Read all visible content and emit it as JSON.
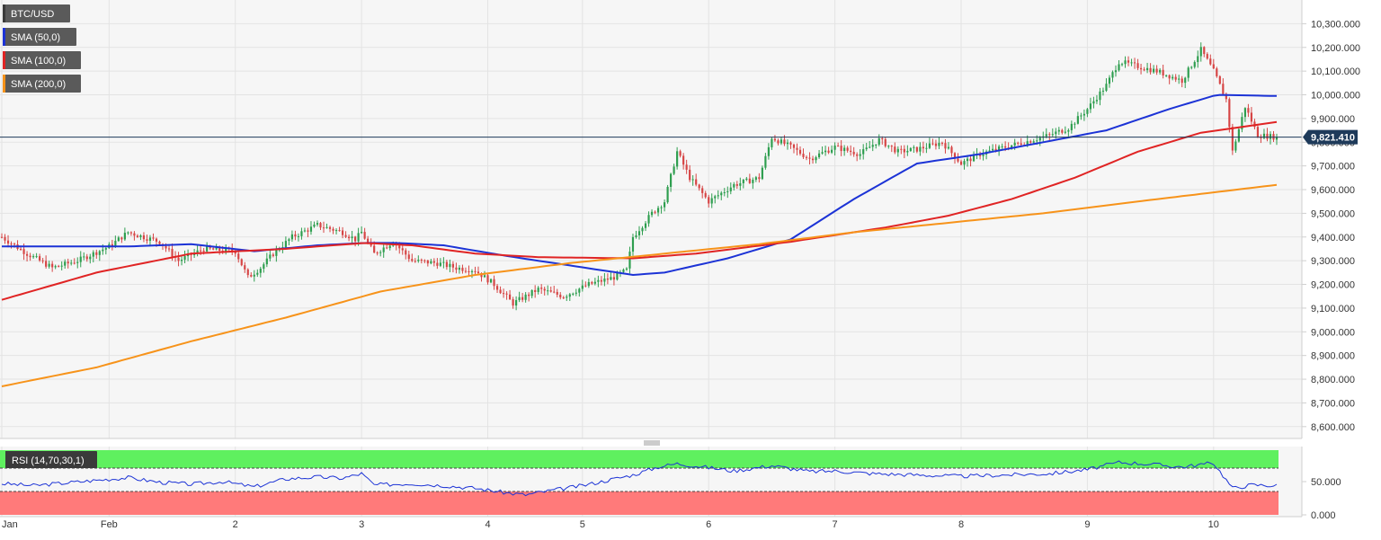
{
  "chart_data": [
    {
      "type": "candlestick",
      "symbol_label": "BTC/USD",
      "last_price_label": "9,821.410",
      "last_price": 9821.41,
      "ylim": [
        8550,
        10400
      ],
      "y_ticks": [
        8600,
        8700,
        8800,
        8900,
        9000,
        9100,
        9200,
        9300,
        9400,
        9500,
        9600,
        9700,
        9800,
        9900,
        10000,
        10100,
        10200,
        10300
      ],
      "y_tick_labels": [
        "8,600.000",
        "8,700.000",
        "8,800.000",
        "8,900.000",
        "9,000.000",
        "9,100.000",
        "9,200.000",
        "9,300.000",
        "9,400.000",
        "9,500.000",
        "9,600.000",
        "9,700.000",
        "9,800.000",
        "9,900.000",
        "10,000.000",
        "10,100.000",
        "10,200.000",
        "10,300.000"
      ],
      "x_labels": [
        "Jan",
        "Feb",
        "2",
        "3",
        "4",
        "5",
        "6",
        "7",
        "8",
        "9",
        "10"
      ],
      "x_label_index": [
        0,
        34,
        74,
        114,
        154,
        184,
        224,
        264,
        304,
        344,
        384
      ],
      "candles_count": 405,
      "key_closes": [
        [
          0,
          9400
        ],
        [
          8,
          9330
        ],
        [
          16,
          9270
        ],
        [
          24,
          9300
        ],
        [
          34,
          9360
        ],
        [
          40,
          9420
        ],
        [
          50,
          9380
        ],
        [
          56,
          9300
        ],
        [
          64,
          9350
        ],
        [
          74,
          9340
        ],
        [
          78,
          9230
        ],
        [
          82,
          9270
        ],
        [
          86,
          9330
        ],
        [
          92,
          9400
        ],
        [
          100,
          9450
        ],
        [
          108,
          9420
        ],
        [
          112,
          9390
        ],
        [
          114,
          9420
        ],
        [
          118,
          9330
        ],
        [
          124,
          9380
        ],
        [
          130,
          9300
        ],
        [
          138,
          9290
        ],
        [
          144,
          9270
        ],
        [
          150,
          9260
        ],
        [
          156,
          9200
        ],
        [
          162,
          9120
        ],
        [
          170,
          9180
        ],
        [
          178,
          9150
        ],
        [
          186,
          9200
        ],
        [
          194,
          9230
        ],
        [
          198,
          9260
        ],
        [
          200,
          9400
        ],
        [
          206,
          9500
        ],
        [
          210,
          9550
        ],
        [
          214,
          9760
        ],
        [
          218,
          9650
        ],
        [
          224,
          9550
        ],
        [
          232,
          9620
        ],
        [
          240,
          9650
        ],
        [
          244,
          9820
        ],
        [
          250,
          9780
        ],
        [
          256,
          9730
        ],
        [
          264,
          9780
        ],
        [
          272,
          9750
        ],
        [
          278,
          9810
        ],
        [
          284,
          9760
        ],
        [
          290,
          9770
        ],
        [
          298,
          9800
        ],
        [
          304,
          9710
        ],
        [
          310,
          9750
        ],
        [
          318,
          9780
        ],
        [
          324,
          9800
        ],
        [
          332,
          9830
        ],
        [
          338,
          9860
        ],
        [
          344,
          9940
        ],
        [
          350,
          10040
        ],
        [
          354,
          10140
        ],
        [
          360,
          10120
        ],
        [
          366,
          10100
        ],
        [
          374,
          10060
        ],
        [
          380,
          10190
        ],
        [
          384,
          10100
        ],
        [
          388,
          9980
        ],
        [
          390,
          9760
        ],
        [
          394,
          9950
        ],
        [
          398,
          9830
        ],
        [
          404,
          9821.41
        ]
      ],
      "series": [
        {
          "name": "SMA (50,0)",
          "color": "#1c33d6",
          "points": [
            [
              0,
              9360
            ],
            [
              40,
              9360
            ],
            [
              60,
              9370
            ],
            [
              80,
              9340
            ],
            [
              100,
              9365
            ],
            [
              115,
              9375
            ],
            [
              125,
              9375
            ],
            [
              140,
              9365
            ],
            [
              160,
              9320
            ],
            [
              180,
              9280
            ],
            [
              200,
              9240
            ],
            [
              210,
              9250
            ],
            [
              230,
              9310
            ],
            [
              250,
              9390
            ],
            [
              270,
              9560
            ],
            [
              290,
              9710
            ],
            [
              310,
              9750
            ],
            [
              330,
              9800
            ],
            [
              350,
              9850
            ],
            [
              370,
              9940
            ],
            [
              385,
              10000
            ],
            [
              404,
              9995
            ]
          ]
        },
        {
          "name": "SMA (100,0)",
          "color": "#e02424",
          "points": [
            [
              0,
              9135
            ],
            [
              30,
              9250
            ],
            [
              60,
              9330
            ],
            [
              90,
              9350
            ],
            [
              115,
              9375
            ],
            [
              130,
              9365
            ],
            [
              150,
              9330
            ],
            [
              170,
              9315
            ],
            [
              200,
              9310
            ],
            [
              220,
              9330
            ],
            [
              250,
              9380
            ],
            [
              280,
              9440
            ],
            [
              300,
              9490
            ],
            [
              320,
              9560
            ],
            [
              340,
              9650
            ],
            [
              360,
              9760
            ],
            [
              380,
              9840
            ],
            [
              404,
              9885
            ]
          ]
        },
        {
          "name": "SMA (200,0)",
          "color": "#f7931a",
          "points": [
            [
              0,
              8770
            ],
            [
              30,
              8850
            ],
            [
              60,
              8960
            ],
            [
              90,
              9060
            ],
            [
              120,
              9170
            ],
            [
              150,
              9240
            ],
            [
              180,
              9290
            ],
            [
              210,
              9330
            ],
            [
              240,
              9370
            ],
            [
              270,
              9420
            ],
            [
              300,
              9460
            ],
            [
              330,
              9500
            ],
            [
              360,
              9550
            ],
            [
              404,
              9620
            ]
          ]
        }
      ],
      "grid": true
    },
    {
      "type": "line",
      "label": "RSI (14,70,30,1)",
      "ylim": [
        0,
        100
      ],
      "overbought": 70,
      "oversold": 30,
      "y_ticks": [
        0,
        50
      ],
      "y_tick_labels": [
        "0.000",
        "50.000"
      ],
      "color": "#1c33d6",
      "overbought_zone_color": "#5ff05f",
      "oversold_zone_color": "#ff7a7a",
      "key_values": [
        [
          0,
          47
        ],
        [
          10,
          44
        ],
        [
          20,
          48
        ],
        [
          30,
          52
        ],
        [
          40,
          56
        ],
        [
          50,
          49
        ],
        [
          60,
          46
        ],
        [
          70,
          50
        ],
        [
          80,
          42
        ],
        [
          90,
          54
        ],
        [
          100,
          57
        ],
        [
          108,
          55
        ],
        [
          114,
          62
        ],
        [
          118,
          45
        ],
        [
          130,
          47
        ],
        [
          140,
          44
        ],
        [
          150,
          40
        ],
        [
          160,
          33
        ],
        [
          166,
          30
        ],
        [
          172,
          35
        ],
        [
          184,
          44
        ],
        [
          200,
          60
        ],
        [
          208,
          72
        ],
        [
          214,
          77
        ],
        [
          224,
          71
        ],
        [
          232,
          66
        ],
        [
          244,
          74
        ],
        [
          256,
          65
        ],
        [
          264,
          66
        ],
        [
          276,
          62
        ],
        [
          290,
          60
        ],
        [
          304,
          58
        ],
        [
          318,
          60
        ],
        [
          332,
          62
        ],
        [
          344,
          68
        ],
        [
          354,
          79
        ],
        [
          362,
          77
        ],
        [
          374,
          72
        ],
        [
          384,
          78
        ],
        [
          390,
          40
        ],
        [
          396,
          45
        ],
        [
          404,
          44
        ]
      ]
    }
  ],
  "indicator_labels": [
    "BTC/USD",
    "SMA (50,0)",
    "SMA (100,0)",
    "SMA (200,0)"
  ],
  "indicator_colors": [
    "#3a3a3a",
    "#1c33d6",
    "#e02424",
    "#f7931a"
  ],
  "colors": {
    "up": "#2e9e4f",
    "down": "#d64545",
    "last_price_bg": "#1e3a5a"
  }
}
